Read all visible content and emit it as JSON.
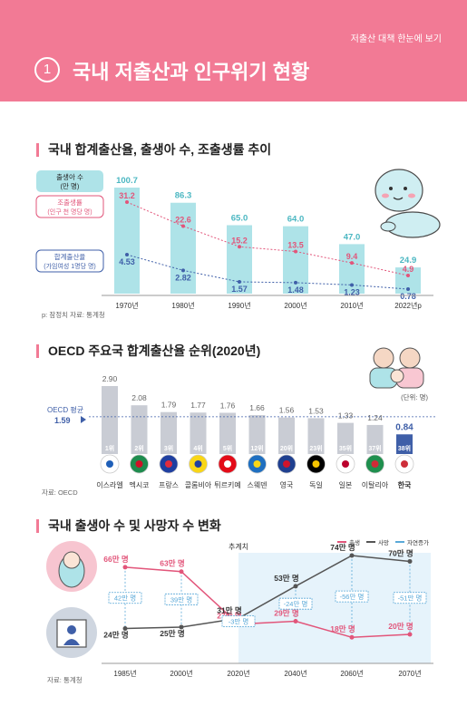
{
  "header": {
    "top_note": "저출산 대책 한눈에 보기",
    "number": "1",
    "title": "국내 저출산과 인구위기 현황"
  },
  "section1": {
    "title": "국내 합계출산율, 출생아 수, 조출생률 추이",
    "source": "p: 잠정치   자료: 통계청",
    "chart_data": {
      "type": "bar",
      "categories": [
        "1970년",
        "1980년",
        "1990년",
        "2000년",
        "2010년",
        "2022년p"
      ],
      "series": [
        {
          "name": "출생아 수 (만 명)",
          "kind": "bar",
          "values": [
            100.7,
            86.3,
            65.0,
            64.0,
            47.0,
            24.9
          ],
          "labels": [
            "100.7",
            "86.3",
            "65.0",
            "64.0",
            "47.0",
            "24.9"
          ],
          "color": "#aee3e8",
          "label_color": "#4bb7c2"
        },
        {
          "name": "조출생률 (인구 천 명당 명)",
          "kind": "line",
          "values": [
            31.2,
            22.6,
            15.2,
            13.5,
            9.4,
            4.9
          ],
          "labels": [
            "31.2",
            "22.6",
            "15.2",
            "13.5",
            "9.4",
            "4.9"
          ],
          "color": "#e2557a"
        },
        {
          "name": "합계출산율 (가임여성 1명당 명)",
          "kind": "line",
          "values": [
            4.53,
            2.82,
            1.57,
            1.48,
            1.23,
            0.78
          ],
          "labels": [
            "4.53",
            "2.82",
            "1.57",
            "1.48",
            "1.23",
            "0.78"
          ],
          "color": "#3f5fa8"
        }
      ]
    },
    "legend": {
      "births": [
        "출생아 수",
        "(만 명)"
      ],
      "crude": [
        "조출생률",
        "(인구 천 명당 명)"
      ],
      "tfr": [
        "합계출산율",
        "(가임여성 1명당 명)"
      ]
    }
  },
  "section2": {
    "title": "OECD 주요국 합계출산율 순위(2020년)",
    "unit": "(단위: 명)",
    "oecd_label": "OECD 평균",
    "oecd_value": "1.59",
    "source": "자료: OECD",
    "chart_data": {
      "type": "bar",
      "categories": [
        "이스라엘",
        "멕시코",
        "프랑스",
        "콜롬비아",
        "튀르키예",
        "스웨덴",
        "영국",
        "독일",
        "일본",
        "이탈리아",
        "한국"
      ],
      "values": [
        2.9,
        2.08,
        1.79,
        1.77,
        1.76,
        1.66,
        1.56,
        1.53,
        1.33,
        1.24,
        0.84
      ],
      "labels": [
        "2.90",
        "2.08",
        "1.79",
        "1.77",
        "1.76",
        "1.66",
        "1.56",
        "1.53",
        "1.33",
        "1.24",
        "0.84"
      ],
      "ranks": [
        "1위",
        "2위",
        "3위",
        "4위",
        "5위",
        "12위",
        "20위",
        "23위",
        "35위",
        "37위",
        "38위"
      ],
      "oecd_average": 1.59
    }
  },
  "section3": {
    "title": "국내 출생아 수 및 사망자 수 변화",
    "legend": [
      "출생",
      "사망",
      "자연증가"
    ],
    "projection_label": "추계치",
    "source": "자료: 통계청",
    "unit_suffix": "만 명",
    "colors": {
      "births": "#e2557a",
      "deaths": "#555555",
      "natural": "#5aa9d8"
    },
    "chart_data": {
      "type": "line",
      "categories": [
        "1985년",
        "2000년",
        "2020년",
        "2040년",
        "2060년",
        "2070년"
      ],
      "series": [
        {
          "name": "출생",
          "values": [
            66,
            63,
            27,
            29,
            18,
            20
          ]
        },
        {
          "name": "사망",
          "values": [
            24,
            25,
            31,
            53,
            74,
            70
          ]
        },
        {
          "name": "자연증가",
          "values": [
            42,
            39,
            -3,
            -24,
            -56,
            -51
          ]
        }
      ],
      "natural_labels": [
        "42만 명",
        "39만 명",
        "-3만 명",
        "-24만 명",
        "-56만 명",
        "-51만 명"
      ]
    }
  }
}
